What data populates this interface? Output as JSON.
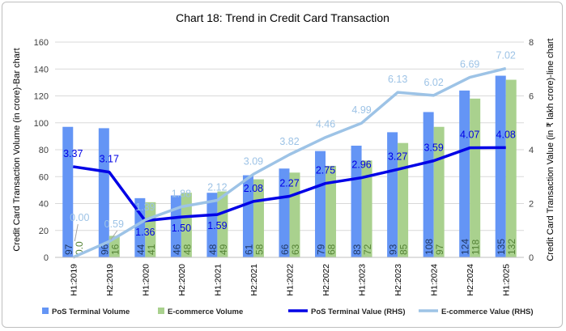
{
  "chart_data": {
    "type": "bar+line",
    "title": "Chart 18: Trend in Credit Card Transaction",
    "ylabel": "Credit Card Transaction Volume (in crore)-Bar chart",
    "y2label": "Credit Card Transaction Value (in ₹ lakh crore)-line chart",
    "ylim": [
      0,
      160
    ],
    "yticks": [
      0,
      20,
      40,
      60,
      80,
      100,
      120,
      140,
      160
    ],
    "y2lim": [
      0,
      8
    ],
    "y2ticks": [
      0,
      2,
      4,
      6,
      8
    ],
    "grid": true,
    "legend": "bottom",
    "categories": [
      "H1:2019",
      "H2:2019",
      "H1:2020",
      "H2:2020",
      "H1:2021",
      "H2:2021",
      "H1:2022",
      "H2:2022",
      "H1:2023",
      "H2:2023",
      "H1:2024",
      "H2:2024",
      "H1:2025"
    ],
    "series": [
      {
        "name": "PoS Terminal Volume",
        "type": "bar",
        "axis": "left",
        "color": "#6495f5",
        "label_color": "#1f3864",
        "values": [
          97,
          96,
          44,
          46,
          48,
          61,
          66,
          79,
          83,
          93,
          108,
          124,
          135
        ],
        "labels": [
          "97",
          "96",
          "44",
          "46",
          "48",
          "61",
          "66",
          "79",
          "83",
          "93",
          "108",
          "124",
          "135"
        ]
      },
      {
        "name": "E-commerce Volume",
        "type": "bar",
        "axis": "left",
        "color": "#a9d18e",
        "label_color": "#548235",
        "values": [
          0.0,
          16,
          41,
          48,
          49,
          58,
          63,
          68,
          72,
          85,
          97,
          118,
          132
        ],
        "labels": [
          "0.0",
          "16",
          "41",
          "48",
          "49",
          "58",
          "63",
          "68",
          "72",
          "85",
          "97",
          "118",
          "132"
        ]
      },
      {
        "name": "PoS Terminal  Value (RHS)",
        "type": "line",
        "axis": "right",
        "color": "#0000e6",
        "values": [
          3.37,
          3.17,
          1.36,
          1.5,
          1.59,
          2.08,
          2.27,
          2.75,
          2.96,
          3.27,
          3.59,
          4.07,
          4.08
        ],
        "labels": [
          "3.37",
          "3.17",
          "1.36",
          "1.50",
          "1.59",
          "2.08",
          "2.27",
          "2.75",
          "2.96",
          "3.27",
          "3.59",
          "4.07",
          "4.08"
        ]
      },
      {
        "name": "E-commerce  Value (RHS)",
        "type": "line",
        "axis": "right",
        "color": "#9dc3e6",
        "values": [
          0.0,
          0.59,
          1.39,
          1.88,
          2.12,
          3.09,
          3.82,
          4.46,
          4.99,
          6.13,
          6.02,
          6.69,
          7.02
        ],
        "labels": [
          "0.00",
          "0.59",
          "1.39",
          "1.88",
          "2.12",
          "3.09",
          "3.82",
          "4.46",
          "4.99",
          "6.13",
          "6.02",
          "6.69",
          "7.02"
        ]
      }
    ]
  }
}
